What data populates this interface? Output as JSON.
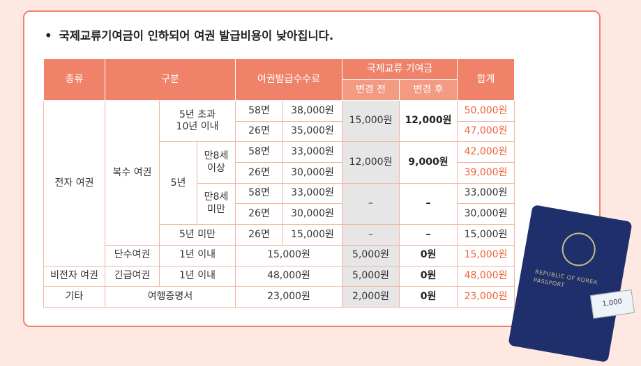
{
  "header": {
    "bullet": "•",
    "title": "국제교류기여금이 인하되어 여권 발급비용이 낮아집니다."
  },
  "table": {
    "columns": [
      "종류",
      "구분",
      "여권발급수수료",
      "국제교류 기여금",
      "합계"
    ],
    "subcolumns": [
      "변경 전",
      "변경 후"
    ],
    "rows": [
      [
        "전자 여권",
        "복수 여권",
        [
          "5년 초과",
          "10년 이내"
        ],
        "58면",
        "38,000원",
        "15,000원",
        "12,000원",
        "50,000원"
      ],
      [
        "26면",
        "35,000원",
        "47,000원"
      ],
      [
        "5년",
        [
          "만8세",
          "이상"
        ],
        "58면",
        "33,000원",
        "12,000원",
        "9,000원",
        "42,000원"
      ],
      [
        "26면",
        "30,000원",
        "39,000원"
      ],
      [
        [
          "만8세",
          "미만"
        ],
        "58면",
        "33,000원",
        "–",
        "–",
        "33,000원"
      ],
      [
        "26면",
        "30,000원",
        "30,000원"
      ],
      [
        "5년 미만",
        "26면",
        "15,000원",
        "–",
        "–",
        "15,000원"
      ],
      [
        "단수여권",
        "1년 이내",
        "15,000원",
        "5,000원",
        "0원",
        "15,000원"
      ],
      [
        "비전자 여권",
        "긴급여권",
        "1년 이내",
        "48,000원",
        "5,000원",
        "0원",
        "48,000원"
      ],
      [
        "기타",
        "여행증명서",
        "23,000원",
        "2,000원",
        "0원",
        "23,000원"
      ]
    ]
  },
  "illustration": {
    "country": "REPUBLIC OF KOREA",
    "doc": "PASSPORT",
    "note": "1,000"
  }
}
